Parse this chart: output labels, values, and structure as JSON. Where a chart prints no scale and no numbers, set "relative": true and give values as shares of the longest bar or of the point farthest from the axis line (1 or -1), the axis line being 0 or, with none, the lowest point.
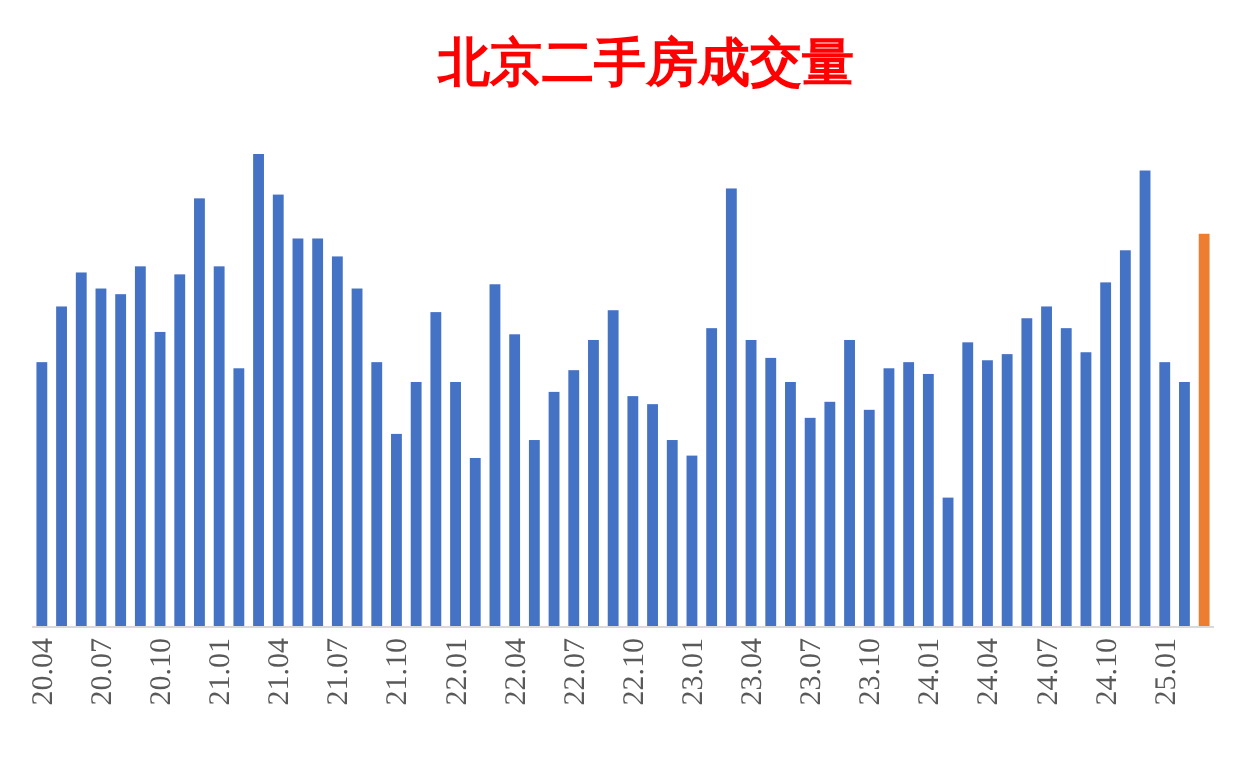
{
  "chart_data": {
    "type": "bar",
    "title": "北京二手房成交量",
    "relative": true,
    "categories": [
      "20.04",
      null,
      null,
      "20.07",
      null,
      null,
      "20.10",
      null,
      null,
      "21.01",
      null,
      null,
      "21.04",
      null,
      null,
      "21.07",
      null,
      null,
      "21.10",
      null,
      null,
      "22.01",
      null,
      null,
      "22.04",
      null,
      null,
      "22.07",
      null,
      null,
      "22.10",
      null,
      null,
      "23.01",
      null,
      null,
      "23.04",
      null,
      null,
      "23.07",
      null,
      null,
      "23.10",
      null,
      null,
      "24.01",
      null,
      null,
      "24.04",
      null,
      null,
      "24.07",
      null,
      null,
      "24.10",
      null,
      null,
      "25.01",
      null,
      null
    ],
    "values": [
      0.559,
      0.677,
      0.749,
      0.715,
      0.703,
      0.762,
      0.623,
      0.745,
      0.906,
      0.762,
      0.546,
      1,
      0.914,
      0.821,
      0.821,
      0.783,
      0.715,
      0.559,
      0.407,
      0.517,
      0.665,
      0.517,
      0.356,
      0.724,
      0.618,
      0.394,
      0.496,
      0.542,
      0.606,
      0.669,
      0.487,
      0.47,
      0.394,
      0.361,
      0.631,
      0.927,
      0.606,
      0.568,
      0.517,
      0.441,
      0.475,
      0.606,
      0.458,
      0.546,
      0.559,
      0.534,
      0.272,
      0.601,
      0.563,
      0.576,
      0.652,
      0.677,
      0.631,
      0.58,
      0.728,
      0.796,
      0.965,
      0.559,
      0.517,
      0.831
    ],
    "colors": [
      "#4472c4",
      "#4472c4",
      "#4472c4",
      "#4472c4",
      "#4472c4",
      "#4472c4",
      "#4472c4",
      "#4472c4",
      "#4472c4",
      "#4472c4",
      "#4472c4",
      "#4472c4",
      "#4472c4",
      "#4472c4",
      "#4472c4",
      "#4472c4",
      "#4472c4",
      "#4472c4",
      "#4472c4",
      "#4472c4",
      "#4472c4",
      "#4472c4",
      "#4472c4",
      "#4472c4",
      "#4472c4",
      "#4472c4",
      "#4472c4",
      "#4472c4",
      "#4472c4",
      "#4472c4",
      "#4472c4",
      "#4472c4",
      "#4472c4",
      "#4472c4",
      "#4472c4",
      "#4472c4",
      "#4472c4",
      "#4472c4",
      "#4472c4",
      "#4472c4",
      "#4472c4",
      "#4472c4",
      "#4472c4",
      "#4472c4",
      "#4472c4",
      "#4472c4",
      "#4472c4",
      "#4472c4",
      "#4472c4",
      "#4472c4",
      "#4472c4",
      "#4472c4",
      "#4472c4",
      "#4472c4",
      "#4472c4",
      "#4472c4",
      "#4472c4",
      "#4472c4",
      "#4472c4",
      "#ed7d31"
    ]
  }
}
